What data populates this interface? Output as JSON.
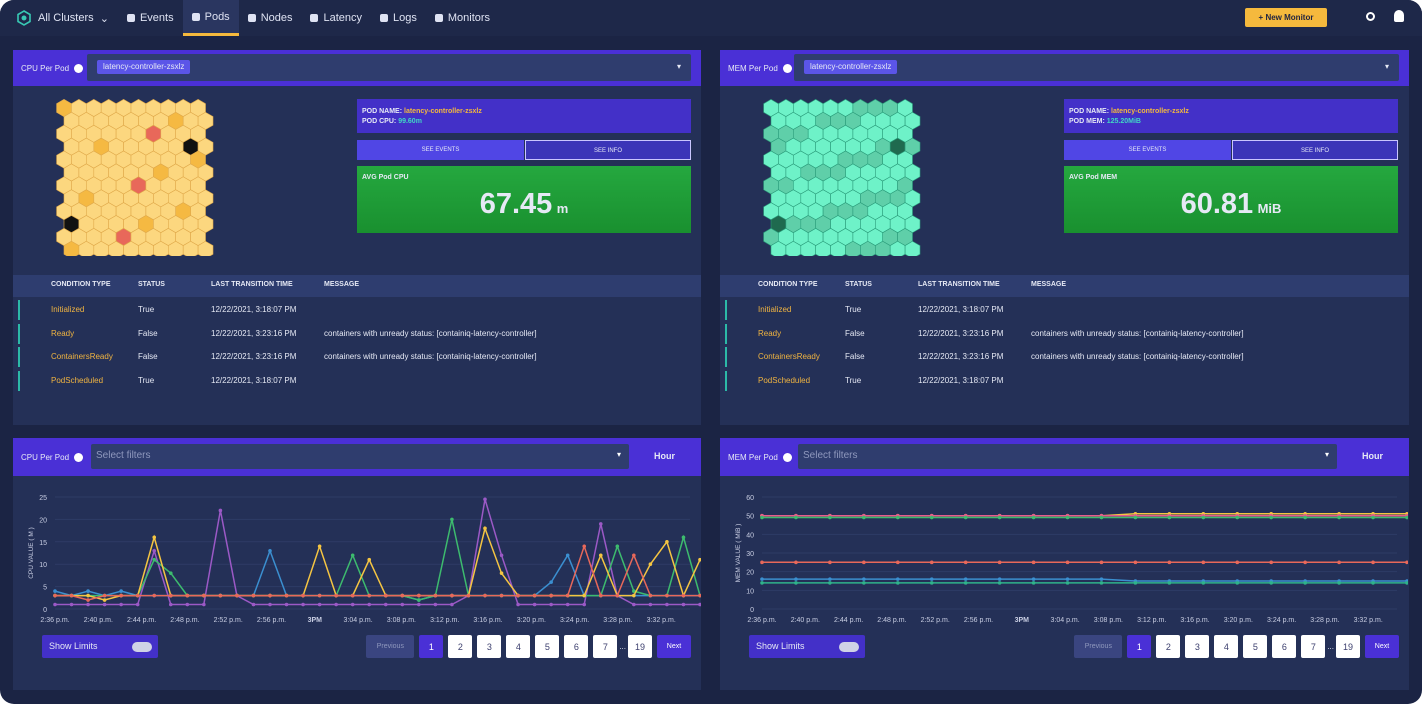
{
  "nav": {
    "brand": "All Clusters",
    "items": [
      "Events",
      "Pods",
      "Nodes",
      "Latency",
      "Logs",
      "Monitors"
    ],
    "new_monitor": "New Monitor"
  },
  "panels": [
    {
      "title": "CPU Per Pod",
      "selected": "latency-controller-zsxlz",
      "pod_name_label": "POD NAME:",
      "pod_name": "latency-controller-zsxlz",
      "metric_label": "POD CPU:",
      "metric_value": "99.60m",
      "buttons": [
        "SEE EVENTS",
        "SEE INFO"
      ],
      "avg_label": "AVG Pod CPU",
      "avg_value": "67.45",
      "avg_unit": "m",
      "table": {
        "headers": [
          "CONDITION TYPE",
          "STATUS",
          "LAST TRANSITION TIME",
          "MESSAGE"
        ],
        "rows": [
          [
            "Initialized",
            "True",
            "12/22/2021, 3:18:07 PM",
            ""
          ],
          [
            "Ready",
            "False",
            "12/22/2021, 3:23:16 PM",
            "containers with unready status: [containiq-latency-controller]"
          ],
          [
            "ContainersReady",
            "False",
            "12/22/2021, 3:23:16 PM",
            "containers with unready status: [containiq-latency-controller]"
          ],
          [
            "PodScheduled",
            "True",
            "12/22/2021, 3:18:07 PM",
            ""
          ]
        ]
      }
    },
    {
      "title": "MEM Per Pod",
      "selected": "latency-controller-zsxlz",
      "pod_name_label": "POD NAME:",
      "pod_name": "latency-controller-zsxlz",
      "metric_label": "POD MEM:",
      "metric_value": "125.20MiB",
      "buttons": [
        "SEE EVENTS",
        "SEE INFO"
      ],
      "avg_label": "AVG Pod MEM",
      "avg_value": "60.81",
      "avg_unit": "MiB",
      "table": {
        "headers": [
          "CONDITION TYPE",
          "STATUS",
          "LAST TRANSITION TIME",
          "MESSAGE"
        ],
        "rows": [
          [
            "Initialized",
            "True",
            "12/22/2021, 3:18:07 PM",
            ""
          ],
          [
            "Ready",
            "False",
            "12/22/2021, 3:23:16 PM",
            "containers with unready status: [containiq-latency-controller]"
          ],
          [
            "ContainersReady",
            "False",
            "12/22/2021, 3:23:16 PM",
            "containers with unready status: [containiq-latency-controller]"
          ],
          [
            "PodScheduled",
            "True",
            "12/22/2021, 3:18:07 PM",
            ""
          ]
        ]
      }
    }
  ],
  "charts": [
    {
      "type": "line",
      "title": "CPU Per Pod",
      "filter_placeholder": "Select filters",
      "range": "Hour",
      "y_label": "CPU VALUE ( M )",
      "ylim": [
        0,
        25
      ],
      "yticks": [
        0,
        5,
        10,
        15,
        20,
        25
      ],
      "x_labels": [
        "2:36 p.m.",
        "2:40 p.m.",
        "2:44 p.m.",
        "2:48 p.m.",
        "2:52 p.m.",
        "2:56 p.m.",
        "3PM",
        "3:04 p.m.",
        "3:08 p.m.",
        "3:12 p.m.",
        "3:16 p.m.",
        "3:20 p.m.",
        "3:24 p.m.",
        "3:28 p.m.",
        "3:32 p.m."
      ],
      "series": [
        {
          "color": "#9b59c6",
          "values": [
            1,
            1,
            1,
            1,
            1,
            1,
            13,
            1,
            1,
            1,
            22,
            3,
            1,
            1,
            1,
            1,
            1,
            1,
            1,
            1,
            1,
            1,
            1,
            1,
            1,
            3,
            24.5,
            12,
            1,
            1,
            1,
            1,
            1,
            19,
            3,
            1,
            1,
            1,
            1,
            1
          ]
        },
        {
          "color": "#3b8fd0",
          "values": [
            4,
            3,
            4,
            3,
            4,
            3,
            3,
            3,
            3,
            3,
            3,
            3,
            3,
            13,
            3,
            3,
            3,
            3,
            3,
            3,
            3,
            3,
            2,
            3,
            3,
            3,
            3,
            3,
            3,
            3,
            6,
            12,
            3,
            3,
            3,
            3,
            3,
            3,
            3,
            3
          ]
        },
        {
          "color": "#3dbb6e",
          "values": [
            3,
            3,
            3,
            3,
            3,
            3,
            11,
            8,
            3,
            3,
            3,
            3,
            3,
            3,
            3,
            3,
            3,
            3,
            12,
            3,
            3,
            3,
            2,
            3,
            20,
            3,
            3,
            3,
            3,
            3,
            3,
            3,
            3,
            3,
            14,
            4,
            3,
            3,
            16,
            3
          ]
        },
        {
          "color": "#f5c542",
          "values": [
            3,
            3,
            3,
            2,
            3,
            3,
            16,
            3,
            3,
            3,
            3,
            3,
            3,
            3,
            3,
            3,
            14,
            3,
            3,
            11,
            3,
            3,
            3,
            3,
            3,
            3,
            18,
            8,
            3,
            3,
            3,
            3,
            3,
            12,
            3,
            3,
            10,
            15,
            3,
            11
          ]
        },
        {
          "color": "#e8685a",
          "values": [
            3,
            3,
            2,
            3,
            3,
            3,
            3,
            3,
            3,
            3,
            3,
            3,
            3,
            3,
            3,
            3,
            3,
            3,
            3,
            3,
            3,
            3,
            3,
            3,
            3,
            3,
            3,
            3,
            3,
            3,
            3,
            3,
            14,
            3,
            3,
            12,
            3,
            3,
            3,
            3
          ]
        }
      ],
      "show_limits": "Show Limits",
      "pagination": {
        "previous": "Previous",
        "pages": [
          1,
          2,
          3,
          4,
          5,
          6,
          7,
          19
        ],
        "ellipsis": "...",
        "next": "Next"
      }
    },
    {
      "type": "line",
      "title": "MEM Per Pod",
      "filter_placeholder": "Select filters",
      "range": "Hour",
      "y_label": "MEM VALUE ( MiB )",
      "ylim": [
        0,
        60
      ],
      "yticks": [
        0,
        10,
        20,
        30,
        40,
        50,
        60
      ],
      "x_labels": [
        "2:36 p.m.",
        "2:40 p.m.",
        "2:44 p.m.",
        "2:48 p.m.",
        "2:52 p.m.",
        "2:56 p.m.",
        "3PM",
        "3:04 p.m.",
        "3:08 p.m.",
        "3:12 p.m.",
        "3:16 p.m.",
        "3:20 p.m.",
        "3:24 p.m.",
        "3:28 p.m.",
        "3:32 p.m."
      ],
      "series": [
        {
          "color": "#f5c542",
          "values": [
            50,
            50,
            50,
            50,
            50,
            50,
            50,
            50,
            50,
            50,
            50,
            51,
            51,
            51,
            51,
            51,
            51,
            51,
            51,
            51
          ]
        },
        {
          "color": "#e85d8c",
          "values": [
            50,
            50,
            50,
            50,
            50,
            50,
            50,
            50,
            50,
            50,
            50,
            50,
            50,
            50,
            50,
            50,
            50,
            50,
            50,
            50
          ]
        },
        {
          "color": "#3dbb6e",
          "values": [
            49,
            49,
            49,
            49,
            49,
            49,
            49,
            49,
            49,
            49,
            49,
            49,
            49,
            49,
            49,
            49,
            49,
            49,
            49,
            49
          ]
        },
        {
          "color": "#e8685a",
          "values": [
            25,
            25,
            25,
            25,
            25,
            25,
            25,
            25,
            25,
            25,
            25,
            25,
            25,
            25,
            25,
            25,
            25,
            25,
            25,
            25
          ]
        },
        {
          "color": "#3b8fd0",
          "values": [
            16,
            16,
            16,
            16,
            16,
            16,
            16,
            16,
            16,
            16,
            16,
            15,
            15,
            15,
            15,
            15,
            15,
            15,
            15,
            15
          ]
        },
        {
          "color": "#2fb38a",
          "values": [
            14,
            14,
            14,
            14,
            14,
            14,
            14,
            14,
            14,
            14,
            14,
            14,
            14,
            14,
            14,
            14,
            14,
            14,
            14,
            14
          ]
        }
      ],
      "show_limits": "Show Limits",
      "pagination": {
        "previous": "Previous",
        "pages": [
          1,
          2,
          3,
          4,
          5,
          6,
          7,
          19
        ],
        "ellipsis": "...",
        "next": "Next"
      }
    }
  ]
}
